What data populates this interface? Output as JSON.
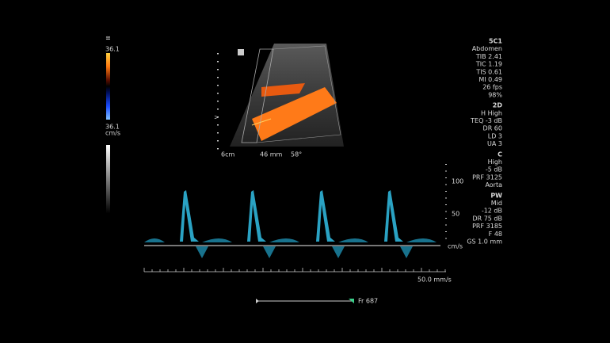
{
  "color_bar": {
    "top_label": "36.1",
    "bottom_label": "36.1",
    "unit": "cm/s"
  },
  "image": {
    "depth": "6cm",
    "size": "46 mm",
    "angle": "58°"
  },
  "settings": [
    {
      "title": "5C1",
      "lines": [
        "Abdomen",
        "TIB 2.41",
        "TIC 1.19",
        "TIS 0.61",
        "MI 0.49",
        "26 fps",
        "98%"
      ]
    },
    {
      "title": "2D",
      "lines": [
        "H High",
        "TEQ -3 dB",
        "DR 60",
        "LD 3",
        "UA 3"
      ]
    },
    {
      "title": "C",
      "lines": [
        "High",
        "-5 dB",
        "PRF 3125",
        "Aorta"
      ]
    },
    {
      "title": "PW",
      "lines": [
        "Mid",
        "-12 dB",
        "DR 75 dB",
        "PRF 3185",
        "F 48",
        "GS 1.0 mm"
      ]
    }
  ],
  "doppler": {
    "scale_labels": [
      "100",
      "50"
    ],
    "unit": "cm/s",
    "sweep": "50.0 mm/s"
  },
  "cine": {
    "frame": "Fr 687"
  }
}
